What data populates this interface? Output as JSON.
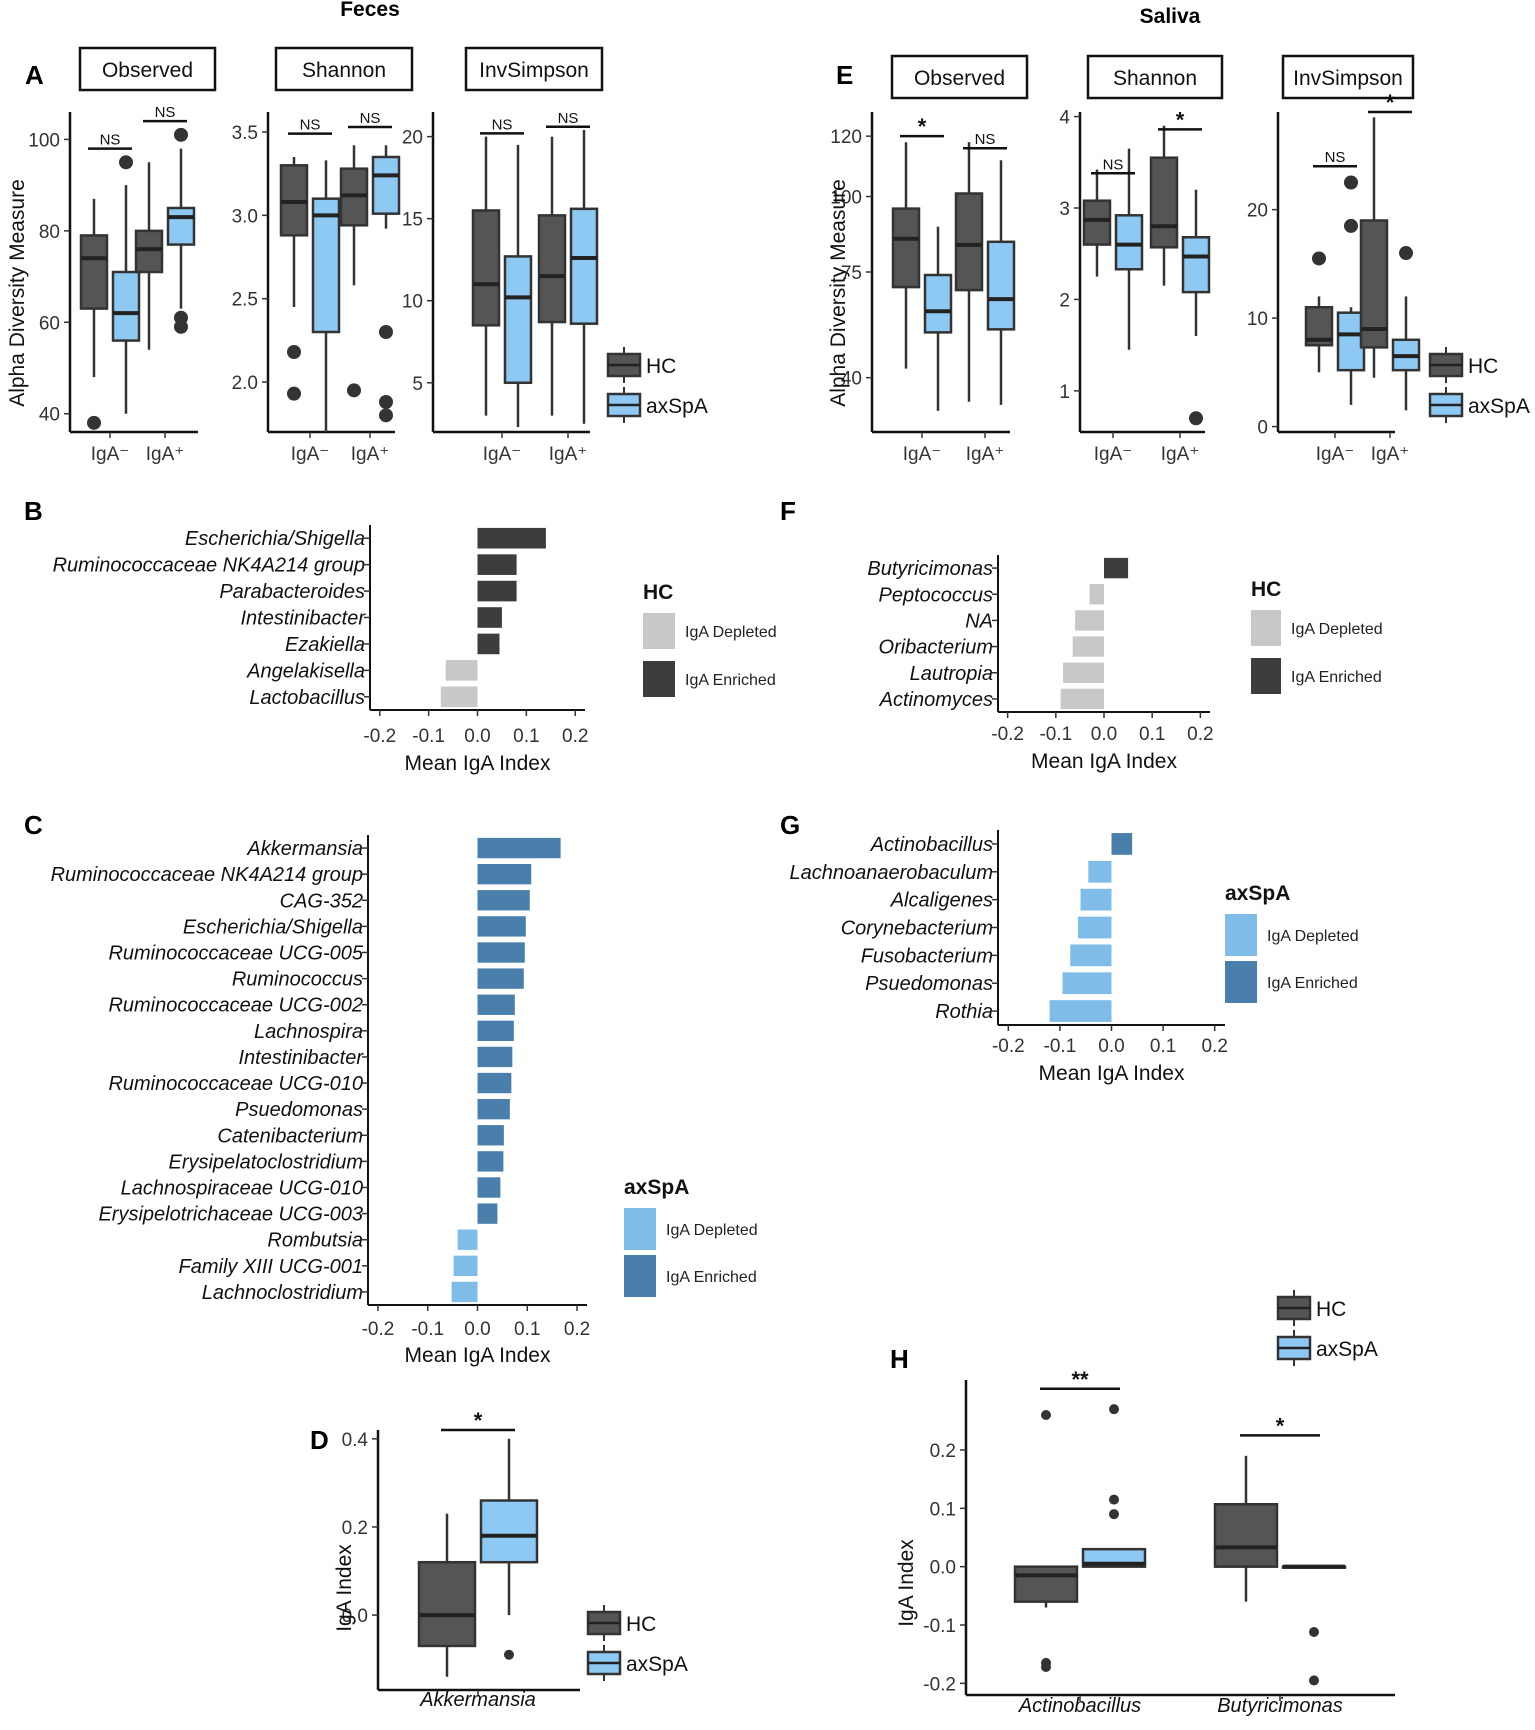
{
  "header": {
    "feces": "Feces",
    "saliva": "Saliva"
  },
  "panel_labels": {
    "A": "A",
    "B": "B",
    "C": "C",
    "D": "D",
    "E": "E",
    "F": "F",
    "G": "G",
    "H": "H"
  },
  "legend": {
    "hc": "HC",
    "axspa": "axSpA",
    "depleted": "IgA Depleted",
    "enriched": "IgA Enriched",
    "title_hc": "HC",
    "title_axspa": "axSpA"
  },
  "colors": {
    "hc": "#555555",
    "axspa": "#8ec9f4",
    "hc_depleted": "#c8c8c8",
    "hc_enriched": "#3d3d3d",
    "ax_depleted": "#7fbde8",
    "ax_enriched": "#4a7fab"
  },
  "chart_data": [
    {
      "id": "A-observed",
      "type": "box",
      "strip": "Observed",
      "ylabel": "Alpha Diversity Measure",
      "ylim": [
        36,
        106
      ],
      "yticks": [
        40,
        60,
        80,
        100
      ],
      "categories": [
        "IgA⁻",
        "IgA⁺"
      ],
      "groups": [
        {
          "cat": 0,
          "series": "HC",
          "whislo": 48,
          "q1": 63,
          "med": 74,
          "q3": 79,
          "whishi": 87,
          "outliers": [
            38
          ]
        },
        {
          "cat": 0,
          "series": "axSpA",
          "whislo": 40,
          "q1": 56,
          "med": 62,
          "q3": 71,
          "whishi": 90,
          "outliers": [
            95
          ]
        },
        {
          "cat": 1,
          "series": "HC",
          "whislo": 54,
          "q1": 71,
          "med": 76,
          "q3": 80,
          "whishi": 95,
          "outliers": []
        },
        {
          "cat": 1,
          "series": "axSpA",
          "whislo": 63,
          "q1": 77,
          "med": 83,
          "q3": 85,
          "whishi": 98,
          "outliers": [
            101,
            61,
            59
          ]
        }
      ],
      "sig": [
        {
          "cat": 0,
          "label": "NS",
          "y": 98
        },
        {
          "cat": 1,
          "label": "NS",
          "y": 104
        }
      ]
    },
    {
      "id": "A-shannon",
      "type": "box",
      "strip": "Shannon",
      "ylim": [
        1.7,
        3.62
      ],
      "yticks": [
        2.0,
        2.5,
        3.0,
        3.5
      ],
      "categories": [
        "IgA⁻",
        "IgA⁺"
      ],
      "groups": [
        {
          "cat": 0,
          "series": "HC",
          "whislo": 2.45,
          "q1": 2.88,
          "med": 3.08,
          "q3": 3.3,
          "whishi": 3.35,
          "outliers": [
            2.18,
            1.93
          ]
        },
        {
          "cat": 0,
          "series": "axSpA",
          "whislo": 1.7,
          "q1": 2.3,
          "med": 3.0,
          "q3": 3.1,
          "whishi": 3.33,
          "outliers": []
        },
        {
          "cat": 1,
          "series": "HC",
          "whislo": 2.58,
          "q1": 2.94,
          "med": 3.12,
          "q3": 3.28,
          "whishi": 3.42,
          "outliers": [
            1.95
          ]
        },
        {
          "cat": 1,
          "series": "axSpA",
          "whislo": 2.92,
          "q1": 3.01,
          "med": 3.24,
          "q3": 3.35,
          "whishi": 3.42,
          "outliers": [
            2.3,
            1.88,
            1.8
          ]
        }
      ],
      "sig": [
        {
          "cat": 0,
          "label": "NS",
          "y": 3.49
        },
        {
          "cat": 1,
          "label": "NS",
          "y": 3.53
        }
      ]
    },
    {
      "id": "A-invsimpson",
      "type": "box",
      "strip": "InvSimpson",
      "ylim": [
        2,
        21.5
      ],
      "yticks": [
        5,
        10,
        15,
        20
      ],
      "categories": [
        "IgA⁻",
        "IgA⁺"
      ],
      "groups": [
        {
          "cat": 0,
          "series": "HC",
          "whislo": 3,
          "q1": 8.5,
          "med": 11,
          "q3": 15.5,
          "whishi": 20,
          "outliers": []
        },
        {
          "cat": 0,
          "series": "axSpA",
          "whislo": 2.3,
          "q1": 5,
          "med": 10.2,
          "q3": 12.7,
          "whishi": 19.5,
          "outliers": []
        },
        {
          "cat": 1,
          "series": "HC",
          "whislo": 3,
          "q1": 8.7,
          "med": 11.5,
          "q3": 15.2,
          "whishi": 20,
          "outliers": []
        },
        {
          "cat": 1,
          "series": "axSpA",
          "whislo": 2.5,
          "q1": 8.6,
          "med": 12.6,
          "q3": 15.6,
          "whishi": 20.4,
          "outliers": []
        }
      ],
      "sig": [
        {
          "cat": 0,
          "label": "NS",
          "y": 20.2
        },
        {
          "cat": 1,
          "label": "NS",
          "y": 20.6
        }
      ]
    },
    {
      "id": "B",
      "type": "barh",
      "xlabel": "Mean IgA Index",
      "xlim": [
        -0.22,
        0.22
      ],
      "xticks": [
        -0.2,
        -0.1,
        0.0,
        0.1,
        0.2
      ],
      "categories": [
        "Escherichia/Shigella",
        "Ruminococcaceae NK4A214 group",
        "Parabacteroides",
        "Intestinibacter",
        "Ezakiella",
        "Angelakisella",
        "Lactobacillus"
      ],
      "values": [
        0.14,
        0.08,
        0.08,
        0.05,
        0.045,
        -0.065,
        -0.075
      ],
      "direction": [
        "Enriched",
        "Enriched",
        "Enriched",
        "Enriched",
        "Enriched",
        "Depleted",
        "Depleted"
      ],
      "legend_title": "HC"
    },
    {
      "id": "C",
      "type": "barh",
      "xlabel": "Mean IgA Index",
      "xlim": [
        -0.22,
        0.22
      ],
      "xticks": [
        -0.2,
        -0.1,
        0.0,
        0.1,
        0.2
      ],
      "categories": [
        "Akkermansia",
        "Ruminococcaceae NK4A214 group",
        "CAG-352",
        "Escherichia/Shigella",
        "Ruminococcaceae UCG-005",
        "Ruminococcus",
        "Ruminococcaceae UCG-002",
        "Lachnospira",
        "Intestinibacter",
        "Ruminococcaceae UCG-010",
        "Psuedomonas",
        "Catenibacterium",
        "Erysipelatoclostridium",
        "Lachnospiraceae UCG-010",
        "Erysipelotrichaceae UCG-003",
        "Rombutsia",
        "Family XIII UCG-001",
        "Lachnoclostridium"
      ],
      "values": [
        0.167,
        0.108,
        0.105,
        0.097,
        0.095,
        0.093,
        0.075,
        0.073,
        0.07,
        0.068,
        0.065,
        0.053,
        0.052,
        0.046,
        0.04,
        -0.04,
        -0.048,
        -0.052
      ],
      "direction": [
        "Enriched",
        "Enriched",
        "Enriched",
        "Enriched",
        "Enriched",
        "Enriched",
        "Enriched",
        "Enriched",
        "Enriched",
        "Enriched",
        "Enriched",
        "Enriched",
        "Enriched",
        "Enriched",
        "Enriched",
        "Depleted",
        "Depleted",
        "Depleted"
      ],
      "legend_title": "axSpA"
    },
    {
      "id": "D",
      "type": "box",
      "ylabel": "IgA Index",
      "ylim": [
        -0.17,
        0.42
      ],
      "yticks": [
        0.0,
        0.2,
        0.4
      ],
      "categories": [
        "Akkermansia"
      ],
      "groups": [
        {
          "cat": 0,
          "series": "HC",
          "whislo": -0.14,
          "q1": -0.07,
          "med": 0.0,
          "q3": 0.12,
          "whishi": 0.23,
          "outliers": []
        },
        {
          "cat": 0,
          "series": "axSpA",
          "whislo": 0.0,
          "q1": 0.12,
          "med": 0.18,
          "q3": 0.26,
          "whishi": 0.4,
          "outliers": [
            -0.09
          ]
        }
      ],
      "sig": [
        {
          "cat": 0,
          "label": "*",
          "y": 0.42
        }
      ]
    },
    {
      "id": "E-observed",
      "type": "box",
      "strip": "Observed",
      "ylabel": "Alpha Diversity Measure",
      "ylim": [
        22,
        128
      ],
      "yticks": [
        40,
        75,
        100,
        120
      ],
      "categories": [
        "IgA⁻",
        "IgA⁺"
      ],
      "groups": [
        {
          "cat": 0,
          "series": "HC",
          "whislo": 43,
          "q1": 70,
          "med": 86,
          "q3": 96,
          "whishi": 118,
          "outliers": []
        },
        {
          "cat": 0,
          "series": "axSpA",
          "whislo": 29,
          "q1": 55,
          "med": 62,
          "q3": 74,
          "whishi": 90,
          "outliers": []
        },
        {
          "cat": 1,
          "series": "HC",
          "whislo": 32,
          "q1": 69,
          "med": 84,
          "q3": 101,
          "whishi": 118,
          "outliers": []
        },
        {
          "cat": 1,
          "series": "axSpA",
          "whislo": 31,
          "q1": 56,
          "med": 66,
          "q3": 85,
          "whishi": 112,
          "outliers": []
        }
      ],
      "sig": [
        {
          "cat": 0,
          "label": "*",
          "y": 120
        },
        {
          "cat": 1,
          "label": "NS",
          "y": 116
        }
      ]
    },
    {
      "id": "E-shannon",
      "type": "box",
      "strip": "Shannon",
      "ylim": [
        0.55,
        4.05
      ],
      "yticks": [
        1,
        2,
        3,
        4
      ],
      "categories": [
        "IgA⁻",
        "IgA⁺"
      ],
      "groups": [
        {
          "cat": 0,
          "series": "HC",
          "whislo": 2.25,
          "q1": 2.6,
          "med": 2.87,
          "q3": 3.08,
          "whishi": 3.42,
          "outliers": []
        },
        {
          "cat": 0,
          "series": "axSpA",
          "whislo": 1.45,
          "q1": 2.33,
          "med": 2.6,
          "q3": 2.92,
          "whishi": 3.65,
          "outliers": []
        },
        {
          "cat": 1,
          "series": "HC",
          "whislo": 2.15,
          "q1": 2.57,
          "med": 2.8,
          "q3": 3.55,
          "whishi": 3.9,
          "outliers": []
        },
        {
          "cat": 1,
          "series": "axSpA",
          "whislo": 1.6,
          "q1": 2.08,
          "med": 2.47,
          "q3": 2.68,
          "whishi": 3.2,
          "outliers": [
            0.7
          ]
        }
      ],
      "sig": [
        {
          "cat": 0,
          "label": "NS",
          "y": 3.38
        },
        {
          "cat": 1,
          "label": "*",
          "y": 3.86
        }
      ]
    },
    {
      "id": "E-invsimpson",
      "type": "box",
      "strip": "InvSimpson",
      "ylim": [
        -0.5,
        29
      ],
      "yticks": [
        0,
        10,
        20
      ],
      "categories": [
        "IgA⁻",
        "IgA⁺"
      ],
      "groups": [
        {
          "cat": 0,
          "series": "HC",
          "whislo": 5,
          "q1": 7.5,
          "med": 8,
          "q3": 11,
          "whishi": 12,
          "outliers": [
            15.5
          ]
        },
        {
          "cat": 0,
          "series": "axSpA",
          "whislo": 2,
          "q1": 5.2,
          "med": 8.5,
          "q3": 10.5,
          "whishi": 11,
          "outliers": [
            22.5,
            18.5
          ]
        },
        {
          "cat": 1,
          "series": "HC",
          "whislo": 4.5,
          "q1": 7.3,
          "med": 9,
          "q3": 19,
          "whishi": 28.5,
          "outliers": []
        },
        {
          "cat": 1,
          "series": "axSpA",
          "whislo": 1.5,
          "q1": 5.2,
          "med": 6.5,
          "q3": 8,
          "whishi": 12,
          "outliers": [
            16
          ]
        }
      ],
      "sig": [
        {
          "cat": 0,
          "label": "NS",
          "y": 24
        },
        {
          "cat": 1,
          "label": "*",
          "y": 29
        }
      ]
    },
    {
      "id": "F",
      "type": "barh",
      "xlabel": "Mean IgA Index",
      "xlim": [
        -0.22,
        0.22
      ],
      "xticks": [
        -0.2,
        -0.1,
        0.0,
        0.1,
        0.2
      ],
      "categories": [
        "Butyricimonas",
        "Peptococcus",
        "NA",
        "Oribacterium",
        "Lautropia",
        "Actinomyces"
      ],
      "values": [
        0.05,
        -0.03,
        -0.06,
        -0.065,
        -0.085,
        -0.09
      ],
      "direction": [
        "Enriched",
        "Depleted",
        "Depleted",
        "Depleted",
        "Depleted",
        "Depleted"
      ],
      "legend_title": "HC"
    },
    {
      "id": "G",
      "type": "barh",
      "xlabel": "Mean IgA Index",
      "xlim": [
        -0.22,
        0.22
      ],
      "xticks": [
        -0.2,
        -0.1,
        0.0,
        0.1,
        0.2
      ],
      "categories": [
        "Actinobacillus",
        "Lachnoanaerobaculum",
        "Alcaligenes",
        "Corynebacterium",
        "Fusobacterium",
        "Psuedomonas",
        "Rothia"
      ],
      "values": [
        0.04,
        -0.045,
        -0.06,
        -0.065,
        -0.08,
        -0.095,
        -0.12
      ],
      "direction": [
        "Enriched",
        "Depleted",
        "Depleted",
        "Depleted",
        "Depleted",
        "Depleted",
        "Depleted"
      ],
      "legend_title": "axSpA"
    },
    {
      "id": "H",
      "type": "box",
      "ylabel": "IgA Index",
      "ylim": [
        -0.22,
        0.32
      ],
      "yticks": [
        -0.2,
        -0.1,
        0.0,
        0.1,
        0.2
      ],
      "categories": [
        "Actinobacillus",
        "Butyricimonas"
      ],
      "groups": [
        {
          "cat": 0,
          "series": "HC",
          "whislo": -0.07,
          "q1": -0.06,
          "med": -0.015,
          "q3": 0.0,
          "whishi": 0.0,
          "outliers": [
            0.26,
            -0.165,
            -0.172
          ]
        },
        {
          "cat": 0,
          "series": "axSpA",
          "whislo": 0.0,
          "q1": 0.0,
          "med": 0.005,
          "q3": 0.03,
          "whishi": 0.03,
          "outliers": [
            0.27,
            0.115,
            0.09
          ]
        },
        {
          "cat": 1,
          "series": "HC",
          "whislo": -0.06,
          "q1": 0.0,
          "med": 0.033,
          "q3": 0.107,
          "whishi": 0.19,
          "outliers": []
        },
        {
          "cat": 1,
          "series": "axSpA",
          "whislo": 0.0,
          "q1": 0.0,
          "med": 0.0,
          "q3": 0.0,
          "whishi": 0.0,
          "outliers": [
            -0.112,
            -0.195
          ]
        }
      ],
      "sig": [
        {
          "cat": 0,
          "label": "**",
          "y": 0.305
        },
        {
          "cat": 1,
          "label": "*",
          "y": 0.225
        }
      ]
    }
  ]
}
